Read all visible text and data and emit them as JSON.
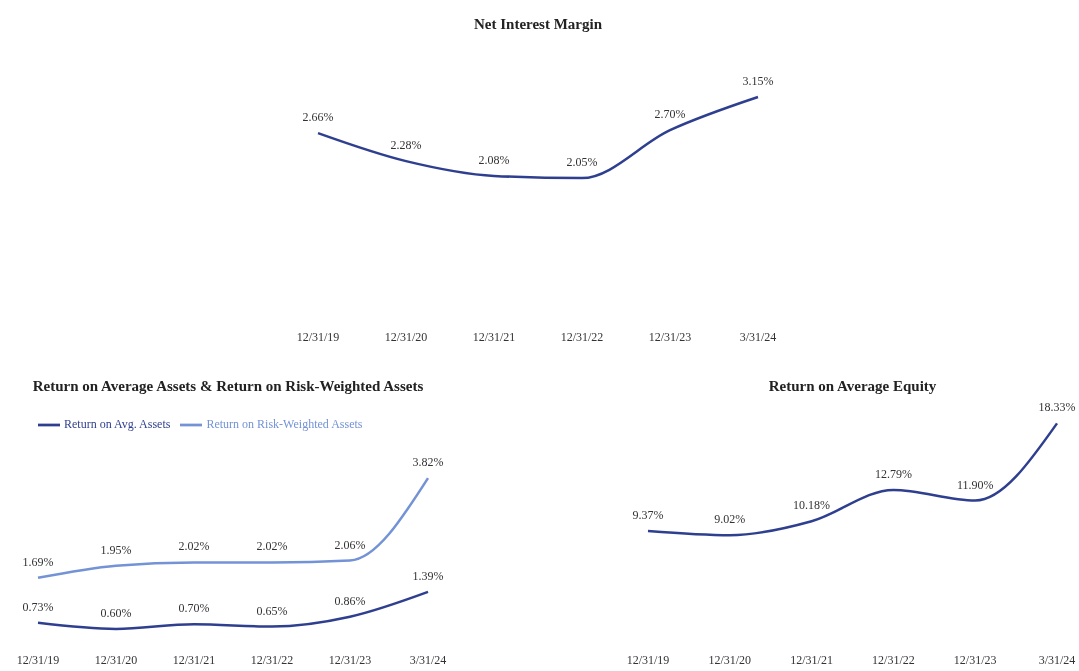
{
  "chart_data": [
    {
      "type": "line",
      "title": "Net Interest Margin",
      "categories": [
        "12/31/19",
        "12/31/20",
        "12/31/21",
        "12/31/22",
        "12/31/23",
        "3/31/24"
      ],
      "series": [
        {
          "color": "#2f3f8f",
          "values": [
            2.66,
            2.28,
            2.08,
            2.05,
            2.7,
            3.15
          ],
          "value_labels": [
            "2.66%",
            "2.28%",
            "2.08%",
            "2.05%",
            "2.70%",
            "3.15%"
          ]
        }
      ],
      "legend": false,
      "marker": "none"
    },
    {
      "type": "line",
      "title": "Return on Average Assets & Return on Risk-Weighted Assets",
      "categories": [
        "12/31/19",
        "12/31/20",
        "12/31/21",
        "12/31/22",
        "12/31/23",
        "3/31/24"
      ],
      "series": [
        {
          "name": "Return on Avg. Assets",
          "color": "#2f3f8f",
          "values": [
            0.73,
            0.6,
            0.7,
            0.65,
            0.86,
            1.39
          ],
          "value_labels": [
            "0.73%",
            "0.60%",
            "0.70%",
            "0.65%",
            "0.86%",
            "1.39%"
          ]
        },
        {
          "name": "Return on Risk-Weighted Assets",
          "color": "#7393d6",
          "values": [
            1.69,
            1.95,
            2.02,
            2.02,
            2.06,
            3.82
          ],
          "value_labels": [
            "1.69%",
            "1.95%",
            "2.02%",
            "2.02%",
            "2.06%",
            "3.82%"
          ]
        }
      ],
      "legend": "top left",
      "marker": "none"
    },
    {
      "type": "line",
      "title": "Return on Average Equity",
      "categories": [
        "12/31/19",
        "12/31/20",
        "12/31/21",
        "12/31/22",
        "12/31/23",
        "3/31/24"
      ],
      "series": [
        {
          "color": "#2f3f8f",
          "values": [
            9.37,
            9.02,
            10.18,
            12.79,
            11.9,
            18.33
          ],
          "value_labels": [
            "9.37%",
            "9.02%",
            "10.18%",
            "12.79%",
            "11.90%",
            "18.33%"
          ]
        }
      ],
      "legend": false,
      "marker": "none"
    }
  ]
}
